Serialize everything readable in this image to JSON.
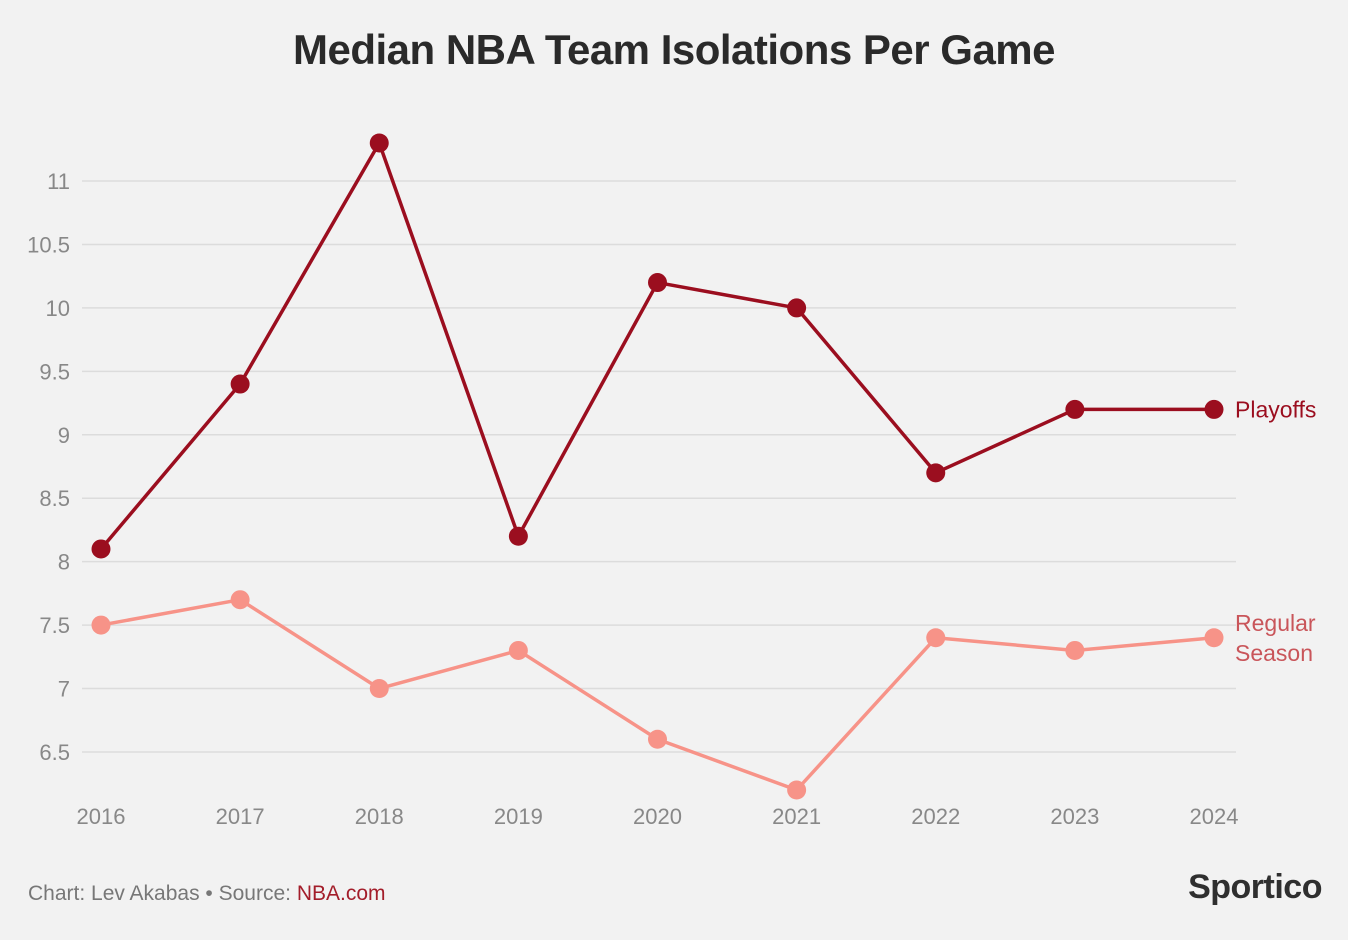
{
  "header": {
    "title": "Median NBA Team Isolations Per Game"
  },
  "chart_data": {
    "type": "line",
    "title": "Median NBA Team Isolations Per Game",
    "categories": [
      "2016",
      "2017",
      "2018",
      "2019",
      "2020",
      "2021",
      "2022",
      "2023",
      "2024"
    ],
    "yticks": [
      "6.5",
      "7",
      "7.5",
      "8",
      "8.5",
      "9",
      "9.5",
      "10",
      "10.5",
      "11"
    ],
    "ylim": [
      6.2,
      11.3
    ],
    "xlabel": "",
    "ylabel": "",
    "grid": true,
    "series": [
      {
        "name": "Playoffs",
        "label_lines": [
          "Playoffs"
        ],
        "color": "#9b0e1f",
        "values": [
          8.1,
          9.4,
          11.3,
          8.2,
          10.2,
          10.0,
          8.7,
          9.2,
          9.2
        ]
      },
      {
        "name": "Regular Season",
        "label_lines": [
          "Regular",
          "Season"
        ],
        "color": "#f79388",
        "label_color": "#c9555a",
        "values": [
          7.5,
          7.7,
          7.0,
          7.3,
          6.6,
          6.2,
          7.4,
          7.3,
          7.4
        ]
      }
    ]
  },
  "footer": {
    "credit": "Chart: Lev Akabas • Source: ",
    "source": "NBA.com",
    "brand": "Sportico"
  }
}
